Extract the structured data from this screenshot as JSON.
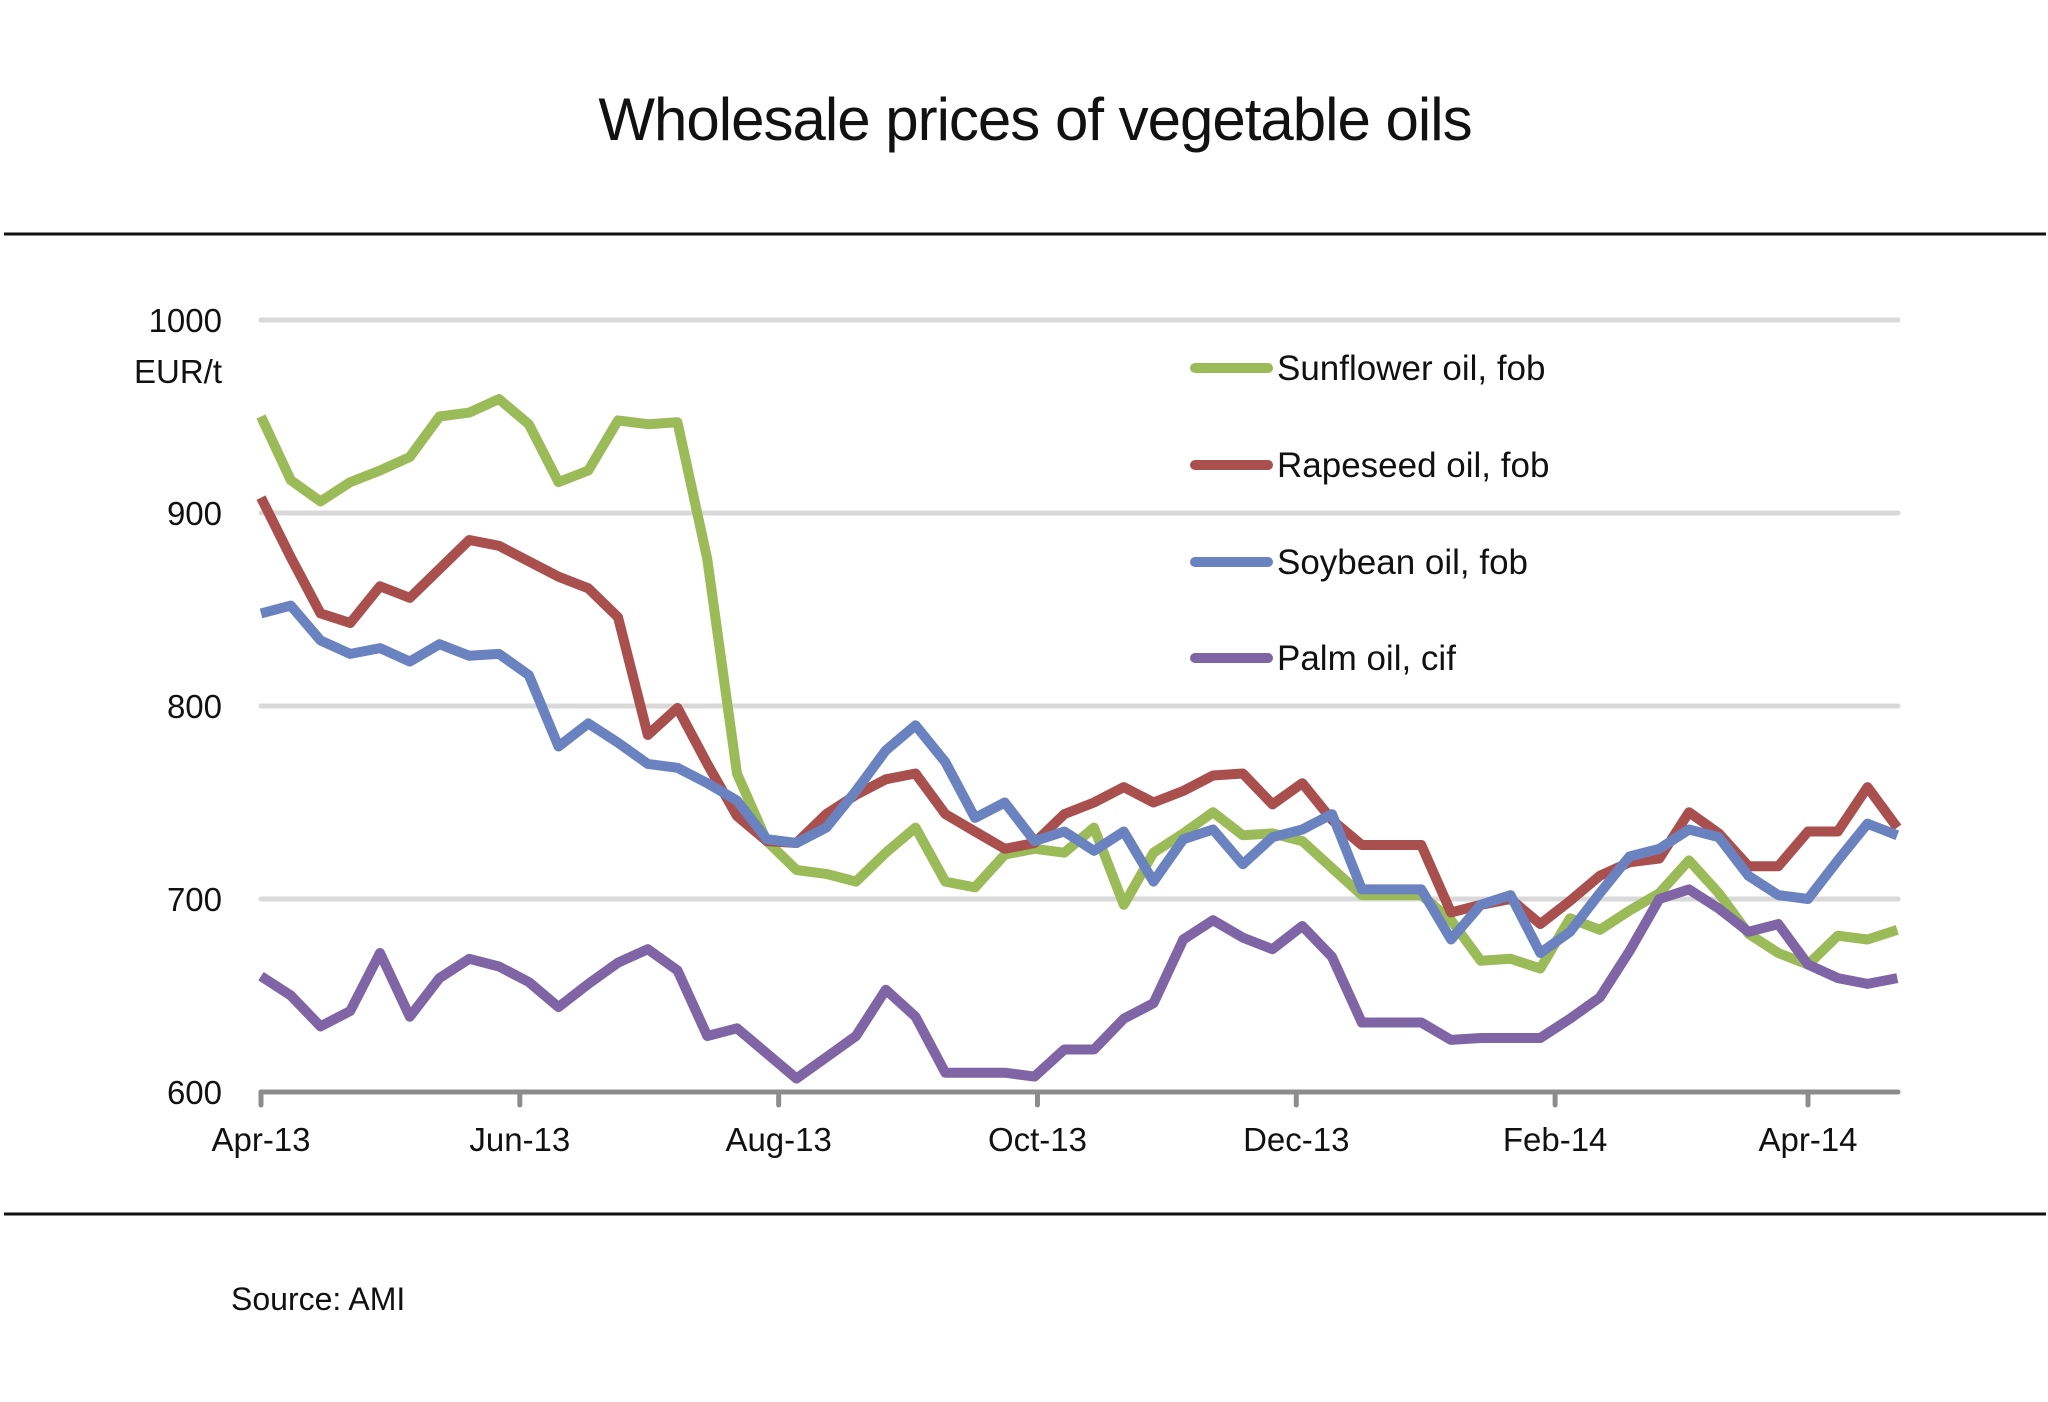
{
  "chart_data": {
    "type": "line",
    "title": "Wholesale prices of vegetable oils",
    "ylabel": "EUR/t",
    "xlabel": "",
    "ylim": [
      600,
      1000
    ],
    "yticks": [
      600,
      700,
      800,
      900,
      1000
    ],
    "ytick_labels": [
      "600",
      "700",
      "800",
      "900",
      "1000"
    ],
    "x_frequency": "weekly",
    "x_point_count": 56,
    "xtick_labels": [
      "Apr-13",
      "Jun-13",
      "Aug-13",
      "Oct-13",
      "Dec-13",
      "Feb-14",
      "Apr-14"
    ],
    "xtick_positions": [
      0,
      8.7,
      17.4,
      26.1,
      34.8,
      43.5,
      52.0
    ],
    "grid": "horizontal",
    "legend_position": "top-right",
    "series": [
      {
        "name": "Sunflower oil, fob",
        "color": "#9BBB59",
        "values": [
          950,
          917,
          906,
          916,
          922,
          929,
          950,
          952,
          959,
          946,
          916,
          922,
          948,
          946,
          947,
          876,
          765,
          730,
          715,
          713,
          709,
          724,
          737,
          709,
          706,
          723,
          726,
          724,
          737,
          697,
          724,
          734,
          745,
          733,
          734,
          730,
          716,
          702,
          702,
          702,
          689,
          668,
          669,
          664,
          690,
          684,
          694,
          703,
          720,
          703,
          682,
          672,
          666,
          681,
          679,
          684
        ]
      },
      {
        "name": "Rapeseed oil, fob",
        "color": "#A9504E",
        "values": [
          908,
          877,
          848,
          843,
          862,
          856,
          871,
          886,
          883,
          875,
          867,
          861,
          846,
          785,
          799,
          770,
          743,
          730,
          729,
          744,
          754,
          762,
          765,
          744,
          735,
          726,
          729,
          744,
          750,
          758,
          750,
          756,
          764,
          765,
          749,
          760,
          741,
          728,
          728,
          728,
          693,
          697,
          700,
          687,
          699,
          712,
          719,
          721,
          745,
          734,
          717,
          717,
          735,
          735,
          758,
          737
        ]
      },
      {
        "name": "Soybean oil, fob",
        "color": "#6A82C0",
        "values": [
          848,
          852,
          834,
          827,
          830,
          823,
          832,
          826,
          827,
          816,
          779,
          791,
          781,
          770,
          768,
          760,
          751,
          731,
          729,
          737,
          756,
          777,
          790,
          771,
          742,
          750,
          730,
          735,
          725,
          735,
          709,
          731,
          736,
          718,
          732,
          736,
          744,
          705,
          705,
          705,
          679,
          697,
          702,
          672,
          683,
          703,
          722,
          726,
          736,
          732,
          712,
          702,
          700,
          720,
          739,
          733
        ]
      },
      {
        "name": "Palm oil, cif",
        "color": "#7F64A6",
        "values": [
          660,
          650,
          634,
          642,
          672,
          639,
          659,
          669,
          665,
          657,
          644,
          656,
          667,
          674,
          663,
          629,
          633,
          620,
          607,
          618,
          629,
          653,
          639,
          610,
          610,
          610,
          608,
          622,
          622,
          638,
          646,
          679,
          689,
          680,
          674,
          686,
          670,
          636,
          636,
          636,
          627,
          628,
          628,
          628,
          638,
          649,
          673,
          700,
          705,
          695,
          683,
          687,
          666,
          659,
          656,
          659
        ]
      }
    ],
    "source": "Source: AMI"
  }
}
